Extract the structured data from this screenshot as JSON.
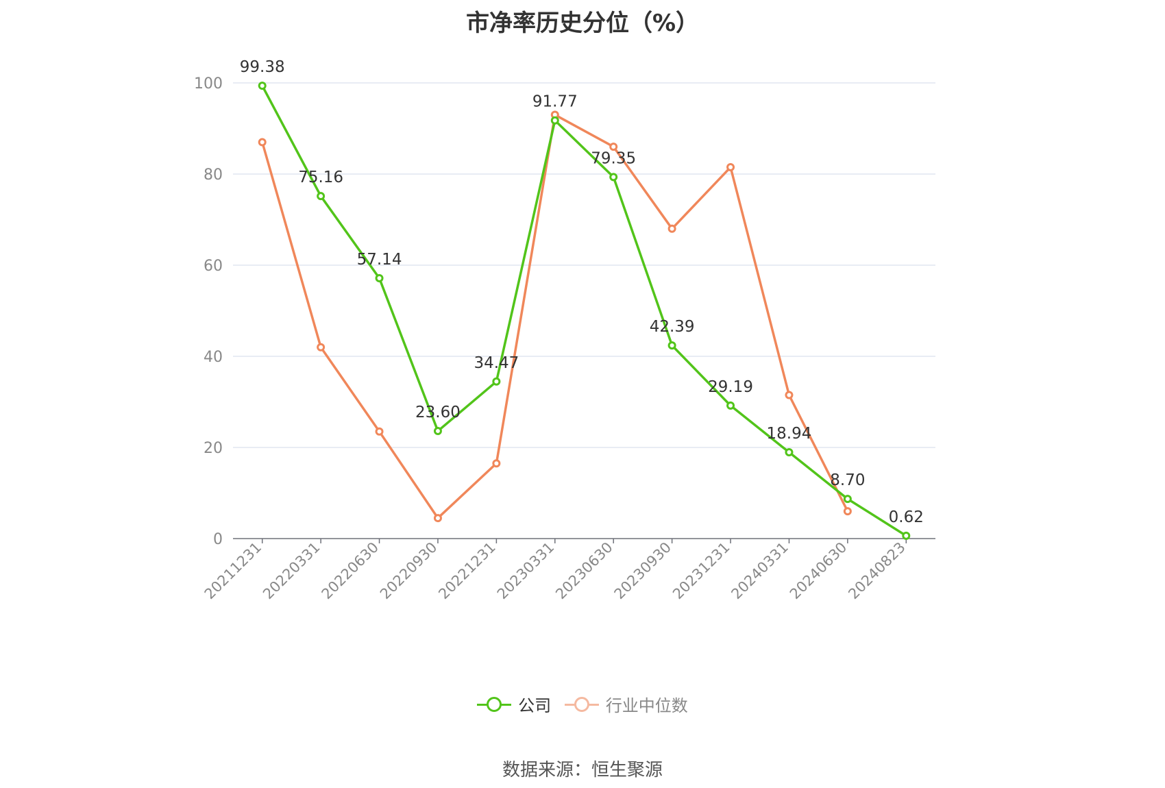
{
  "chart_data": {
    "type": "line",
    "title": "市净率历史分位（%）",
    "categories": [
      "20211231",
      "20220331",
      "20220630",
      "20220930",
      "20221231",
      "20230331",
      "20230630",
      "20230930",
      "20231231",
      "20240331",
      "20240630",
      "20240823"
    ],
    "series": [
      {
        "name": "公司",
        "color": "#52c41a",
        "values": [
          99.38,
          75.16,
          57.14,
          23.6,
          34.47,
          91.77,
          79.35,
          42.39,
          29.19,
          18.94,
          8.7,
          0.62
        ],
        "labels": [
          "99.38",
          "75.16",
          "57.14",
          "23.60",
          "34.47",
          "91.77",
          "79.35",
          "42.39",
          "29.19",
          "18.94",
          "8.70",
          "0.62"
        ]
      },
      {
        "name": "行业中位数",
        "color": "#f0875a",
        "values": [
          87,
          42,
          23.5,
          4.5,
          16.5,
          93,
          86,
          68,
          81.5,
          31.5,
          6,
          null
        ]
      }
    ],
    "ylim": [
      0,
      100
    ],
    "yticks": [
      0,
      20,
      40,
      60,
      80,
      100
    ],
    "grid": true,
    "legend_position": "bottom"
  },
  "source": "数据来源：恒生聚源"
}
